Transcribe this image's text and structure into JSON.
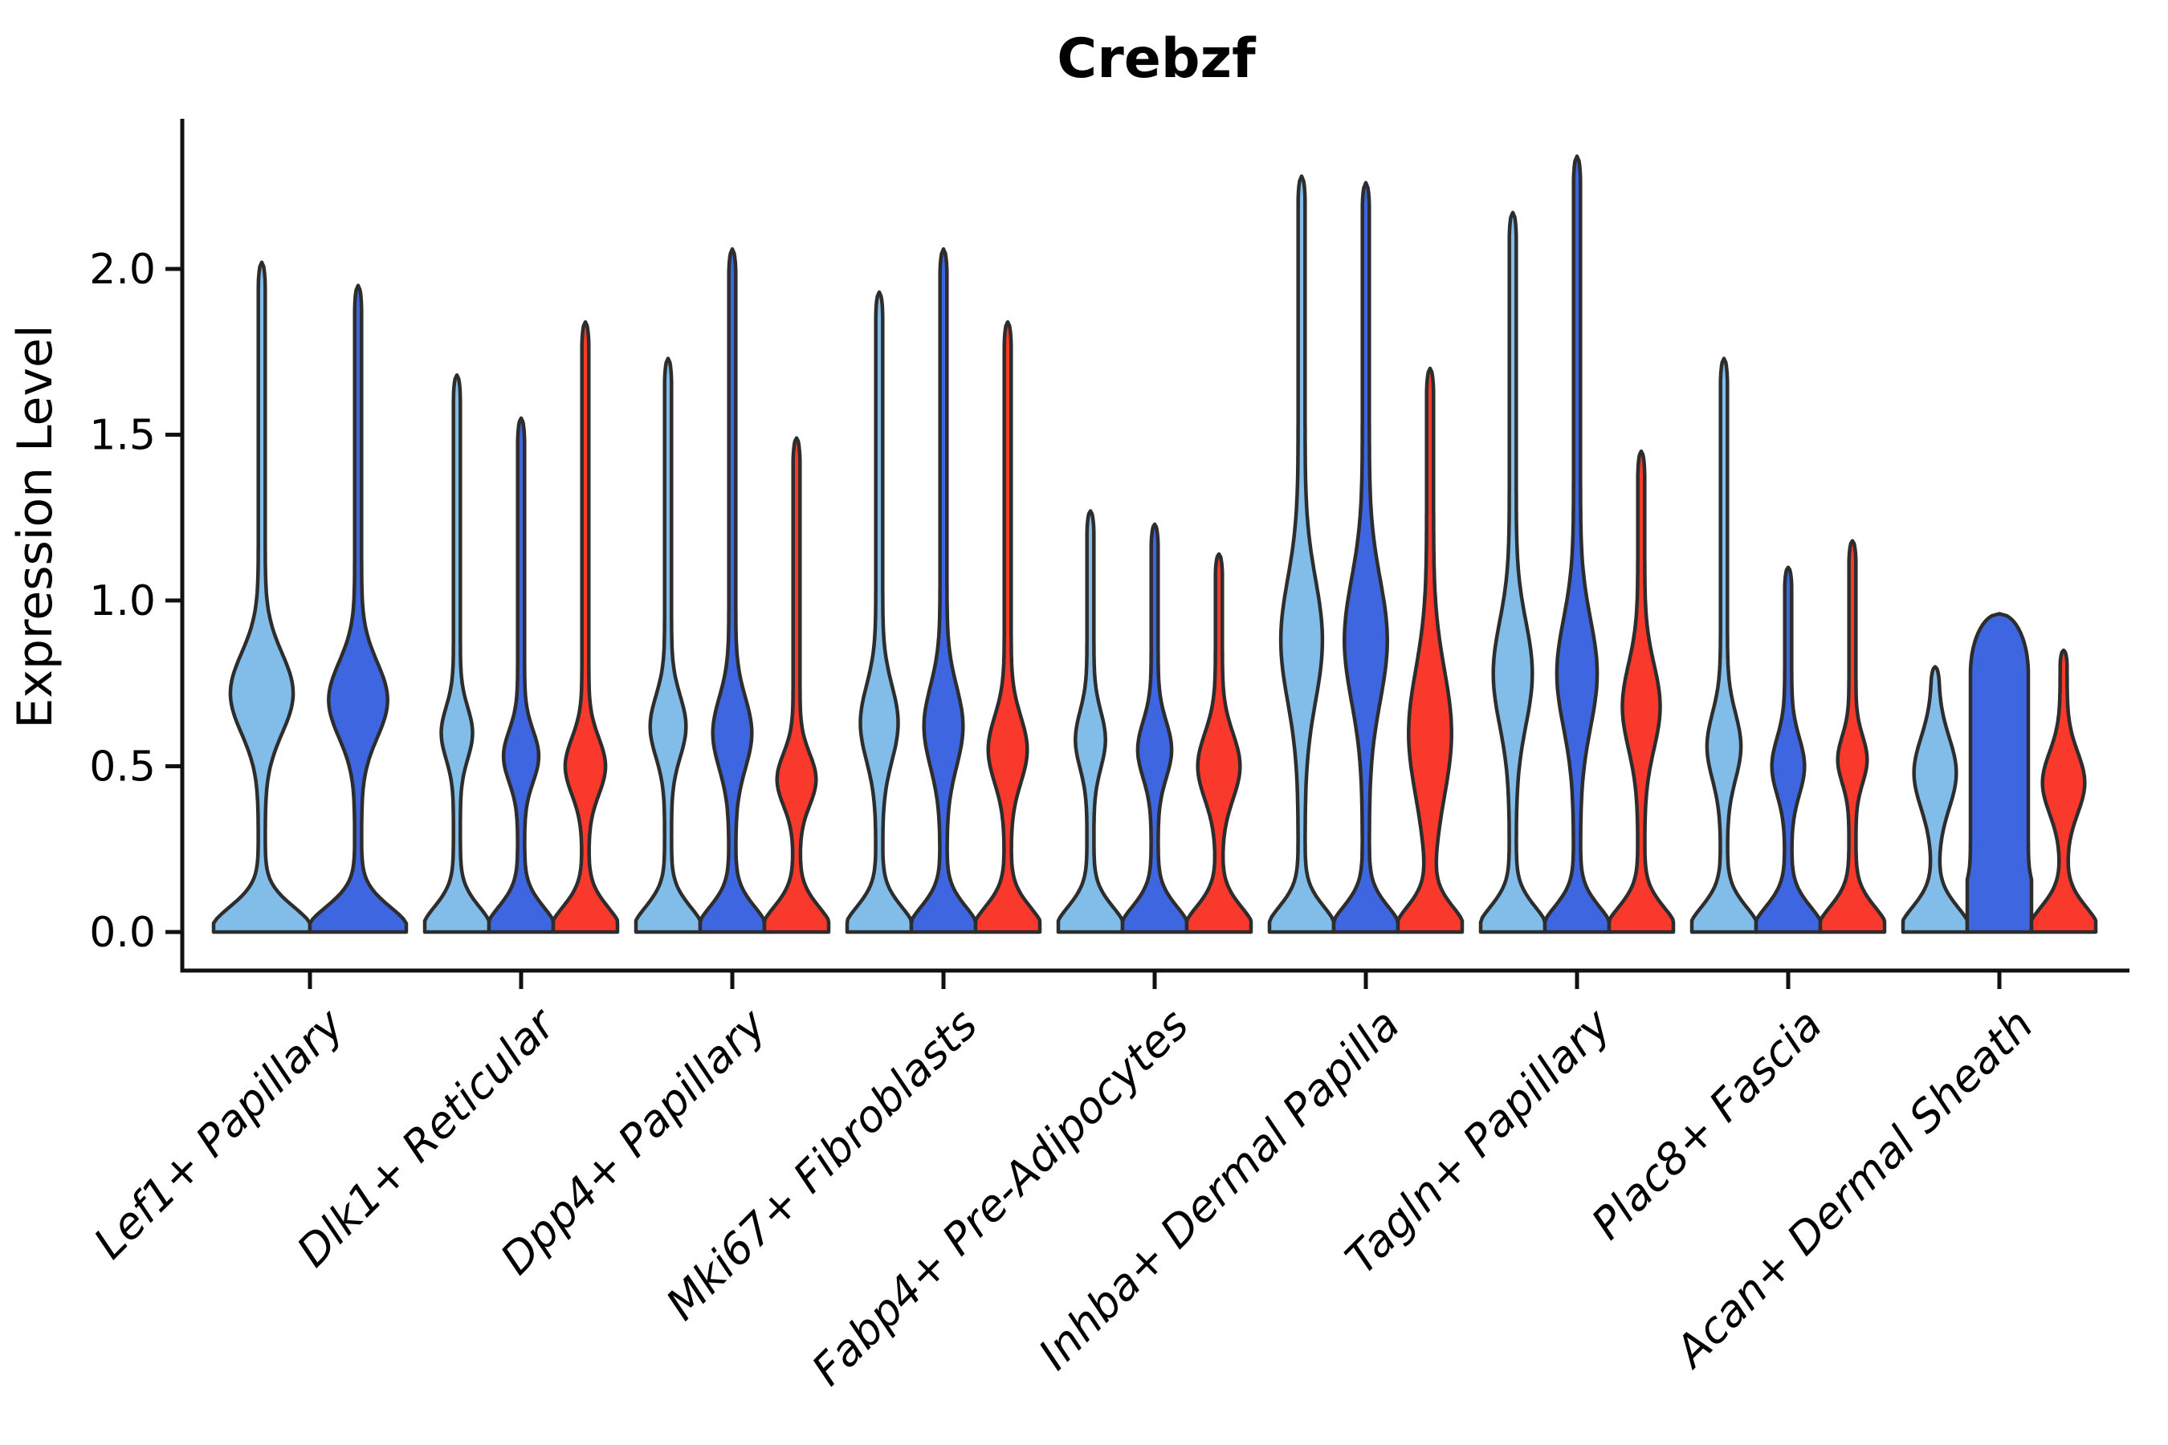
{
  "chart_data": {
    "type": "violin",
    "title": "Crebzf",
    "ylabel": "Expression Level",
    "xlabel": "",
    "grid": false,
    "legend": null,
    "background_color": "#ffffff",
    "outline_color": "#2d2d2d",
    "axis_color": "#111111",
    "ylim": [
      -0.12,
      2.45
    ],
    "ytick_values": [
      0.0,
      0.5,
      1.0,
      1.5,
      2.0
    ],
    "ytick_labels": [
      "0.0",
      "0.5",
      "1.0",
      "1.5",
      "2.0"
    ],
    "series_colors": [
      "#82BDE9",
      "#3E66E0",
      "#F8392B"
    ],
    "categories": [
      "Lef1+ Papillary",
      "Dlk1+ Reticular",
      "Dpp4+ Papillary",
      "Mki67+ Fibroblasts",
      "Fabp4+ Pre-Adipocytes",
      "Inhba+ Dermal Papilla",
      "Tagln+ Papillary",
      "Plac8+ Fascia",
      "Acan+ Dermal Sheath"
    ],
    "groups": [
      {
        "category": "Lef1+ Papillary",
        "violins": [
          {
            "color_index": 0,
            "max": 2.02,
            "mode": 0.72,
            "sigma": 0.17,
            "bulge_width": 0.58
          },
          {
            "color_index": 1,
            "max": 1.95,
            "mode": 0.7,
            "sigma": 0.16,
            "bulge_width": 0.54
          }
        ]
      },
      {
        "category": "Dlk1+ Reticular",
        "violins": [
          {
            "color_index": 0,
            "max": 1.68,
            "mode": 0.6,
            "sigma": 0.11,
            "bulge_width": 0.38
          },
          {
            "color_index": 1,
            "max": 1.55,
            "mode": 0.53,
            "sigma": 0.11,
            "bulge_width": 0.44
          },
          {
            "color_index": 2,
            "max": 1.84,
            "mode": 0.5,
            "sigma": 0.12,
            "bulge_width": 0.52
          }
        ]
      },
      {
        "category": "Dpp4+ Papillary",
        "violins": [
          {
            "color_index": 0,
            "max": 1.73,
            "mode": 0.62,
            "sigma": 0.13,
            "bulge_width": 0.45
          },
          {
            "color_index": 1,
            "max": 2.06,
            "mode": 0.6,
            "sigma": 0.15,
            "bulge_width": 0.5
          },
          {
            "color_index": 2,
            "max": 1.49,
            "mode": 0.46,
            "sigma": 0.11,
            "bulge_width": 0.5
          }
        ]
      },
      {
        "category": "Mki67+ Fibroblasts",
        "violins": [
          {
            "color_index": 0,
            "max": 1.93,
            "mode": 0.63,
            "sigma": 0.16,
            "bulge_width": 0.48
          },
          {
            "color_index": 1,
            "max": 2.06,
            "mode": 0.62,
            "sigma": 0.17,
            "bulge_width": 0.5
          },
          {
            "color_index": 2,
            "max": 1.84,
            "mode": 0.55,
            "sigma": 0.14,
            "bulge_width": 0.5
          }
        ]
      },
      {
        "category": "Fabp4+ Pre-Adipocytes",
        "violins": [
          {
            "color_index": 0,
            "max": 1.27,
            "mode": 0.58,
            "sigma": 0.12,
            "bulge_width": 0.36
          },
          {
            "color_index": 1,
            "max": 1.23,
            "mode": 0.55,
            "sigma": 0.12,
            "bulge_width": 0.42
          },
          {
            "color_index": 2,
            "max": 1.14,
            "mode": 0.5,
            "sigma": 0.14,
            "bulge_width": 0.55
          }
        ]
      },
      {
        "category": "Inhba+ Dermal Papilla",
        "violins": [
          {
            "color_index": 0,
            "max": 2.28,
            "mode": 0.88,
            "sigma": 0.26,
            "bulge_width": 0.54
          },
          {
            "color_index": 1,
            "max": 2.26,
            "mode": 0.88,
            "sigma": 0.26,
            "bulge_width": 0.56
          },
          {
            "color_index": 2,
            "max": 1.7,
            "mode": 0.6,
            "sigma": 0.27,
            "bulge_width": 0.56
          }
        ]
      },
      {
        "category": "Tagln+ Papillary",
        "violins": [
          {
            "color_index": 0,
            "max": 2.17,
            "mode": 0.78,
            "sigma": 0.22,
            "bulge_width": 0.5
          },
          {
            "color_index": 1,
            "max": 2.34,
            "mode": 0.78,
            "sigma": 0.23,
            "bulge_width": 0.52
          },
          {
            "color_index": 2,
            "max": 1.45,
            "mode": 0.68,
            "sigma": 0.18,
            "bulge_width": 0.48
          }
        ]
      },
      {
        "category": "Plac8+ Fascia",
        "violins": [
          {
            "color_index": 0,
            "max": 1.73,
            "mode": 0.56,
            "sigma": 0.14,
            "bulge_width": 0.42
          },
          {
            "color_index": 1,
            "max": 1.1,
            "mode": 0.5,
            "sigma": 0.12,
            "bulge_width": 0.4
          },
          {
            "color_index": 2,
            "max": 1.18,
            "mode": 0.52,
            "sigma": 0.1,
            "bulge_width": 0.35
          }
        ]
      },
      {
        "category": "Acan+ Dermal Sheath",
        "violins": [
          {
            "color_index": 0,
            "max": 0.8,
            "mode": 0.48,
            "sigma": 0.15,
            "bulge_width": 0.55
          },
          {
            "color_index": 1,
            "max": 0.96,
            "flat": true,
            "flat_to": 0.78,
            "bulge_width": 0.9,
            "mode": 0.45,
            "sigma": 0.4
          },
          {
            "color_index": 2,
            "max": 0.85,
            "mode": 0.45,
            "sigma": 0.13,
            "bulge_width": 0.55
          }
        ]
      }
    ]
  }
}
